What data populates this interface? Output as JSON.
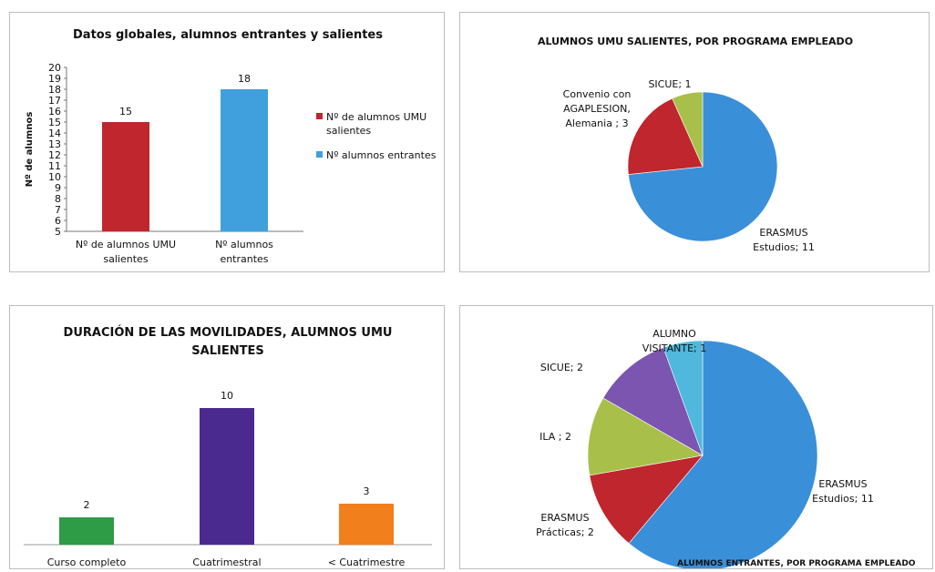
{
  "chart_data": [
    {
      "type": "bar",
      "title": "Datos globales, alumnos entrantes y salientes",
      "ylabel": "Nº de alumnos",
      "xlabel": "",
      "ylim": [
        5,
        20
      ],
      "yticks": [
        5,
        6,
        7,
        8,
        9,
        10,
        11,
        12,
        13,
        14,
        15,
        16,
        17,
        18,
        19,
        20
      ],
      "categories": [
        [
          "Nº de alumnos UMU",
          "salientes"
        ],
        [
          "Nº alumnos",
          "entrantes"
        ]
      ],
      "values": [
        15,
        18
      ],
      "colors": [
        "#c0262d",
        "#3fa0dd"
      ],
      "legend": [
        {
          "lines": [
            "Nº de alumnos UMU",
            "salientes"
          ],
          "color": "#c0262d"
        },
        {
          "lines": [
            "Nº alumnos  entrantes"
          ],
          "color": "#3fa0dd"
        }
      ],
      "legend_position": "right"
    },
    {
      "type": "pie",
      "title": "ALUMNOS UMU SALIENTES, POR PROGRAMA EMPLEADO",
      "slices": [
        {
          "label": [
            "ERASMUS",
            "Estudios; 11"
          ],
          "value": 11,
          "color": "#3a8fd9"
        },
        {
          "label": [
            "Convenio con",
            "AGAPLESION,",
            "Alemania ; 3"
          ],
          "value": 3,
          "color": "#c0262d"
        },
        {
          "label": [
            "SICUE; 1"
          ],
          "value": 1,
          "color": "#a8c04a"
        }
      ]
    },
    {
      "type": "bar",
      "title": [
        "DURACIÓN DE LAS MOVILIDADES, ALUMNOS UMU",
        "SALIENTES"
      ],
      "categories": [
        "Curso completo",
        "Cuatrimestral",
        "< Cuatrimestre"
      ],
      "values": [
        2,
        10,
        3
      ],
      "colors": [
        "#2e9b47",
        "#4b2a8f",
        "#f07f1c"
      ],
      "ylim": [
        0,
        10
      ]
    },
    {
      "type": "pie",
      "title": "ALUMNOS ENTRANTES, POR PROGRAMA EMPLEADO",
      "slices": [
        {
          "label": [
            "ERASMUS",
            "Estudios; 11"
          ],
          "value": 11,
          "color": "#3a8fd9"
        },
        {
          "label": [
            "ERASMUS",
            "Prácticas; 2"
          ],
          "value": 2,
          "color": "#c0262d"
        },
        {
          "label": [
            "ILA ; 2"
          ],
          "value": 2,
          "color": "#a8c04a"
        },
        {
          "label": [
            "SICUE; 2"
          ],
          "value": 2,
          "color": "#7b55b0"
        },
        {
          "label": [
            "ALUMNO",
            "VISITANTE; 1"
          ],
          "value": 1,
          "color": "#4fb8dc"
        }
      ]
    }
  ]
}
